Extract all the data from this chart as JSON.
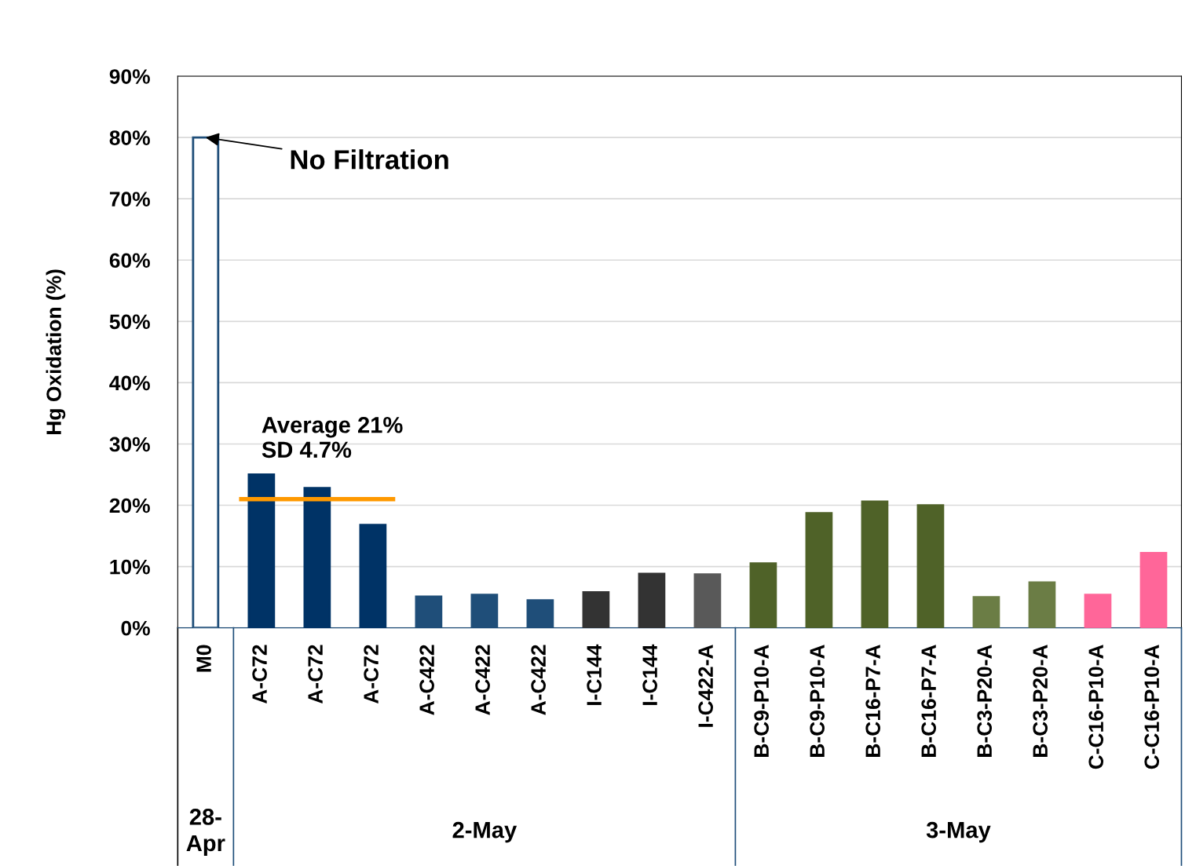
{
  "chart_data": {
    "type": "bar",
    "ylabel": "Hg Oxidation (%)",
    "categories": [
      "M0",
      "A-C72",
      "A-C72",
      "A-C72",
      "A-C422",
      "A-C422",
      "A-C422",
      "I-C144",
      "I-C144",
      "I-C422-A",
      "B-C9-P10-A",
      "B-C9-P10-A",
      "B-C16-P7-A",
      "B-C16-P7-A",
      "B-C3-P20-A",
      "B-C3-P20-A",
      "C-C16-P10-A",
      "C-C16-P10-A"
    ],
    "values": [
      80,
      25,
      22.8,
      16.8,
      5.1,
      5.4,
      4.5,
      5.8,
      8.8,
      8.7,
      10.5,
      18.7,
      20.6,
      20,
      5,
      7.4,
      5.4,
      12.2
    ],
    "colors": [
      "#ffffff",
      "#003366",
      "#003366",
      "#003366",
      "#1f4e79",
      "#1f4e79",
      "#1f4e79",
      "#333333",
      "#333333",
      "#595959",
      "#4f6228",
      "#4f6228",
      "#4f6228",
      "#4f6228",
      "#6b7d45",
      "#6b7d45",
      "#ff6699",
      "#ff6699"
    ],
    "ylim": [
      0,
      90
    ],
    "yticks": [
      {
        "value": 0,
        "label": "0%"
      },
      {
        "value": 10,
        "label": "10%"
      },
      {
        "value": 20,
        "label": "20%"
      },
      {
        "value": 30,
        "label": "30%"
      },
      {
        "value": 40,
        "label": "40%"
      },
      {
        "value": 50,
        "label": "50%"
      },
      {
        "value": 60,
        "label": "60%"
      },
      {
        "value": 70,
        "label": "70%"
      },
      {
        "value": 80,
        "label": "80%"
      },
      {
        "value": 90,
        "label": "90%"
      }
    ],
    "ref_lines": [
      {
        "axis": "y",
        "value": 21,
        "label": "Average 21%\nSD 4.7%",
        "color": "#ff9900"
      }
    ],
    "annotations": [
      {
        "text": "No Filtration",
        "x": "M0",
        "y": 80
      },
      "28-\nApr",
      "2-May",
      "3-May"
    ],
    "grid": "y",
    "legend": false
  }
}
